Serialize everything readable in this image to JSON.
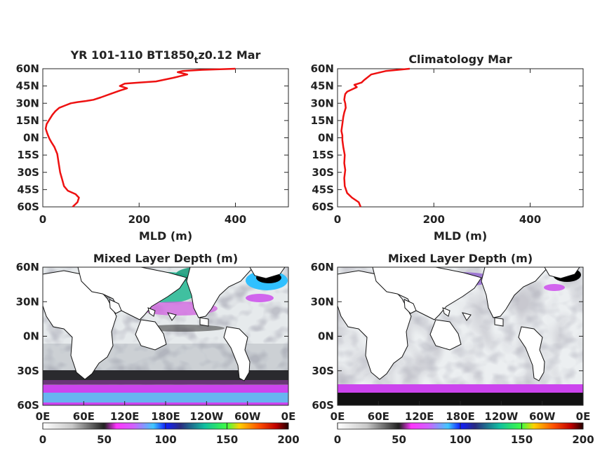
{
  "chart_data": [
    {
      "type": "line",
      "title": "YR 101-110 BT1850",
      "title_sub": "t",
      "title_tail": "z0.12 Mar",
      "xlabel": "MLD (m)",
      "xlim": [
        0,
        510
      ],
      "ylim": [
        -60,
        60
      ],
      "xticks": [
        "0",
        "200",
        "400"
      ],
      "yticks": [
        "60N",
        "45N",
        "30N",
        "15N",
        "0N",
        "15S",
        "30S",
        "45S",
        "60S"
      ],
      "line_color": "#ee1111",
      "series": [
        {
          "x": [
            62,
            72,
            75,
            68,
            52,
            44,
            40,
            36,
            33,
            30,
            24,
            18,
            14,
            12,
            9,
            6,
            8,
            14,
            20,
            26,
            34,
            46,
            58,
            72,
            90,
            105,
            120,
            140,
            160,
            175,
            160,
            170,
            200,
            235,
            270,
            300,
            280,
            290,
            330,
            400
          ],
          "y": [
            -60,
            -56,
            -52,
            -49,
            -46,
            -42,
            -36,
            -30,
            -22,
            -14,
            -8,
            -4,
            -1,
            1,
            4,
            8,
            12,
            16,
            20,
            23,
            26,
            28,
            30,
            31,
            32,
            33,
            35,
            38,
            41,
            43,
            45,
            47,
            48,
            49,
            52,
            55,
            57,
            58,
            59,
            60
          ]
        }
      ]
    },
    {
      "type": "line",
      "title": "Climatology Mar",
      "xlabel": "MLD (m)",
      "xlim": [
        0,
        510
      ],
      "ylim": [
        -60,
        60
      ],
      "xticks": [
        "0",
        "200",
        "400"
      ],
      "yticks": [
        "60N",
        "45N",
        "30N",
        "15N",
        "0N",
        "15S",
        "30S",
        "45S",
        "60S"
      ],
      "line_color": "#ee1111",
      "series": [
        {
          "x": [
            48,
            44,
            30,
            20,
            15,
            14,
            16,
            14,
            15,
            12,
            10,
            10,
            8,
            10,
            12,
            14,
            17,
            16,
            14,
            15,
            16,
            20,
            30,
            40,
            35,
            50,
            55,
            70,
            100,
            150
          ],
          "y": [
            -60,
            -56,
            -52,
            -48,
            -42,
            -35,
            -28,
            -22,
            -15,
            -8,
            -2,
            2,
            6,
            12,
            18,
            22,
            26,
            30,
            33,
            36,
            38,
            40,
            42,
            44,
            46,
            48,
            50,
            55,
            58,
            60
          ]
        }
      ]
    },
    {
      "type": "heatmap",
      "title": "Mixed Layer Depth (m)",
      "lat_ticks": [
        "60N",
        "30N",
        "0N",
        "30S",
        "60S"
      ],
      "lon_ticks": [
        "0E",
        "60E",
        "120E",
        "180E",
        "120W",
        "60W",
        "0E"
      ],
      "colorbar": {
        "range": [
          0,
          200
        ],
        "ticks": [
          "0",
          "50",
          "100",
          "150",
          "200"
        ]
      }
    },
    {
      "type": "heatmap",
      "title": "Mixed Layer Depth (m)",
      "lat_ticks": [
        "60N",
        "30N",
        "0N",
        "30S",
        "60S"
      ],
      "lon_ticks": [
        "0E",
        "60E",
        "120E",
        "180E",
        "120W",
        "60W",
        "0E"
      ],
      "colorbar": {
        "range": [
          0,
          200
        ],
        "ticks": [
          "0",
          "50",
          "100",
          "150",
          "200"
        ]
      }
    }
  ]
}
